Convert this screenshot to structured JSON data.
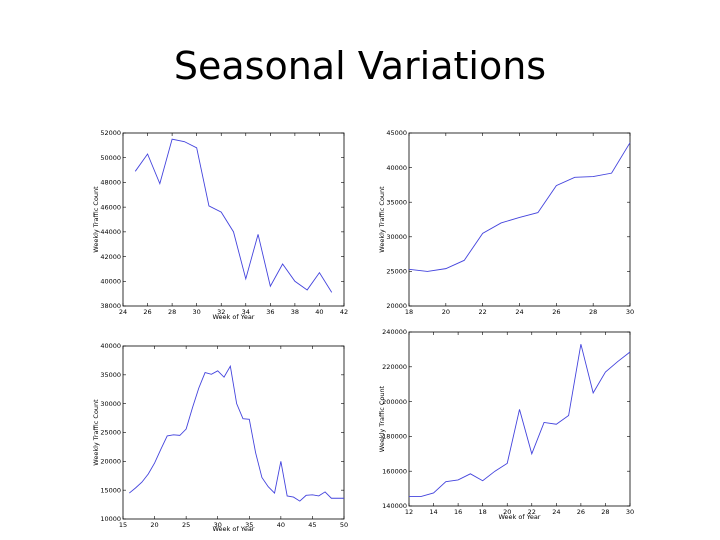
{
  "slide": {
    "title": "Seasonal Variations"
  },
  "colors": {
    "line": "#4444dd",
    "axis": "#000000",
    "background": "#ffffff"
  },
  "chart_data": [
    {
      "type": "line",
      "xlabel": "Week of Year",
      "ylabel": "Weekly Traffic Count",
      "xlim": [
        24,
        42
      ],
      "ylim": [
        38000,
        52000
      ],
      "xticks": [
        24,
        26,
        28,
        30,
        32,
        34,
        36,
        38,
        40,
        42
      ],
      "yticks": [
        38000,
        40000,
        42000,
        44000,
        46000,
        48000,
        50000,
        52000
      ],
      "grid": false,
      "series": [
        {
          "x": [
            25,
            26,
            27,
            28,
            29,
            30,
            31,
            32,
            33,
            34,
            35,
            36,
            37,
            38,
            39,
            40,
            41
          ],
          "y": [
            48900,
            50300,
            47900,
            51500,
            51300,
            50800,
            46100,
            45600,
            44000,
            40200,
            43800,
            39600,
            41400,
            40000,
            39300,
            40700,
            39100
          ]
        }
      ]
    },
    {
      "type": "line",
      "xlabel": "",
      "ylabel": "Weekly Traffic Count",
      "xlim": [
        18,
        30
      ],
      "ylim": [
        20000,
        45000
      ],
      "xticks": [
        18,
        20,
        22,
        24,
        26,
        28,
        30
      ],
      "yticks": [
        20000,
        25000,
        30000,
        35000,
        40000,
        45000
      ],
      "grid": false,
      "series": [
        {
          "x": [
            18,
            19,
            20,
            21,
            22,
            23,
            24,
            25,
            26,
            27,
            28,
            29,
            30
          ],
          "y": [
            25300,
            25000,
            25400,
            26600,
            30500,
            32000,
            32800,
            33500,
            37400,
            38600,
            38700,
            39200,
            43600
          ]
        }
      ]
    },
    {
      "type": "line",
      "xlabel": "Week of Year",
      "ylabel": "Weekly Traffic Count",
      "xlim": [
        15,
        50
      ],
      "ylim": [
        10000,
        40000
      ],
      "xticks": [
        15,
        20,
        25,
        30,
        35,
        40,
        45,
        50
      ],
      "yticks": [
        10000,
        15000,
        20000,
        25000,
        30000,
        35000,
        40000
      ],
      "grid": false,
      "series": [
        {
          "x": [
            16,
            17,
            18,
            19,
            20,
            21,
            22,
            23,
            24,
            25,
            26,
            27,
            28,
            29,
            30,
            31,
            32,
            33,
            34,
            35,
            36,
            37,
            38,
            39,
            40,
            41,
            42,
            43,
            44,
            45,
            46,
            47,
            48,
            49,
            50
          ],
          "y": [
            14500,
            15400,
            16400,
            17800,
            19700,
            22100,
            24400,
            24600,
            24500,
            25600,
            29300,
            32700,
            35400,
            35100,
            35700,
            34600,
            36500,
            30000,
            27400,
            27300,
            21500,
            17200,
            15600,
            14500,
            20000,
            14000,
            13800,
            13100,
            14100,
            14200,
            14000,
            14700,
            13600,
            13600,
            13600
          ]
        }
      ]
    },
    {
      "type": "line",
      "xlabel": "Week of Year",
      "ylabel": "Weekly Traffic Count",
      "xlim": [
        12,
        30
      ],
      "ylim": [
        140000,
        240000
      ],
      "xticks": [
        12,
        14,
        16,
        18,
        20,
        22,
        24,
        26,
        28,
        30
      ],
      "yticks": [
        140000,
        160000,
        180000,
        200000,
        220000,
        240000
      ],
      "grid": false,
      "series": [
        {
          "x": [
            12,
            13,
            14,
            15,
            16,
            17,
            18,
            19,
            20,
            21,
            22,
            23,
            24,
            25,
            26,
            27,
            28,
            29,
            30
          ],
          "y": [
            145500,
            145500,
            147500,
            154000,
            155000,
            158500,
            154500,
            160000,
            164500,
            195500,
            170000,
            188000,
            187000,
            192000,
            233000,
            205000,
            217000,
            223000,
            228500
          ]
        }
      ]
    }
  ]
}
